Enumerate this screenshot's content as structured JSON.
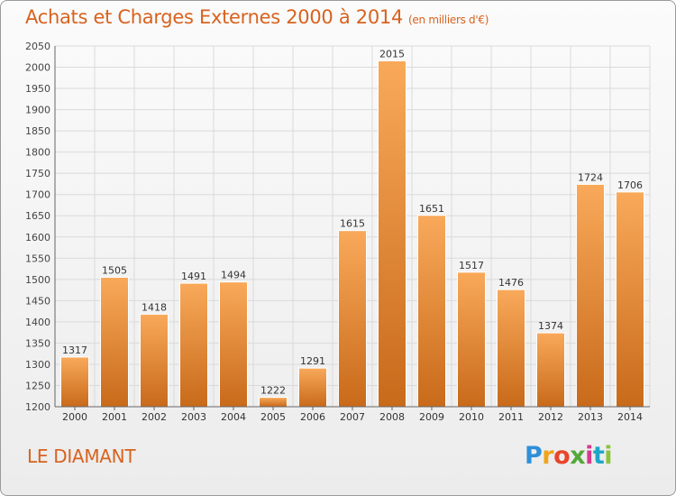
{
  "title": "Achats et Charges Externes 2000 à 2014",
  "subtitle": "(en milliers d'€)",
  "location": "LE DIAMANT",
  "brand": {
    "letters": [
      "P",
      "r",
      "o",
      "x",
      "i",
      "t",
      "i"
    ],
    "colors": [
      "#2f8fd8",
      "#f0a41c",
      "#e8462a",
      "#54a83a",
      "#d63b8c",
      "#1ea6c8",
      "#8bc43a"
    ]
  },
  "colors": {
    "title": "#d8621e",
    "bar_light": "#f9a95a",
    "bar_dark": "#c86a1a",
    "grid": "#dadada"
  },
  "chart_data": {
    "type": "bar",
    "categories": [
      "2000",
      "2001",
      "2002",
      "2003",
      "2004",
      "2005",
      "2006",
      "2007",
      "2008",
      "2009",
      "2010",
      "2011",
      "2012",
      "2013",
      "2014"
    ],
    "values": [
      1317,
      1505,
      1418,
      1491,
      1494,
      1222,
      1291,
      1615,
      2015,
      1651,
      1517,
      1476,
      1374,
      1724,
      1706
    ],
    "ylim": [
      1200,
      2050
    ],
    "yticks": [
      1200,
      1250,
      1300,
      1350,
      1400,
      1450,
      1500,
      1550,
      1600,
      1650,
      1700,
      1750,
      1800,
      1850,
      1900,
      1950,
      2000,
      2050
    ],
    "grid": true,
    "data_labels": true
  }
}
